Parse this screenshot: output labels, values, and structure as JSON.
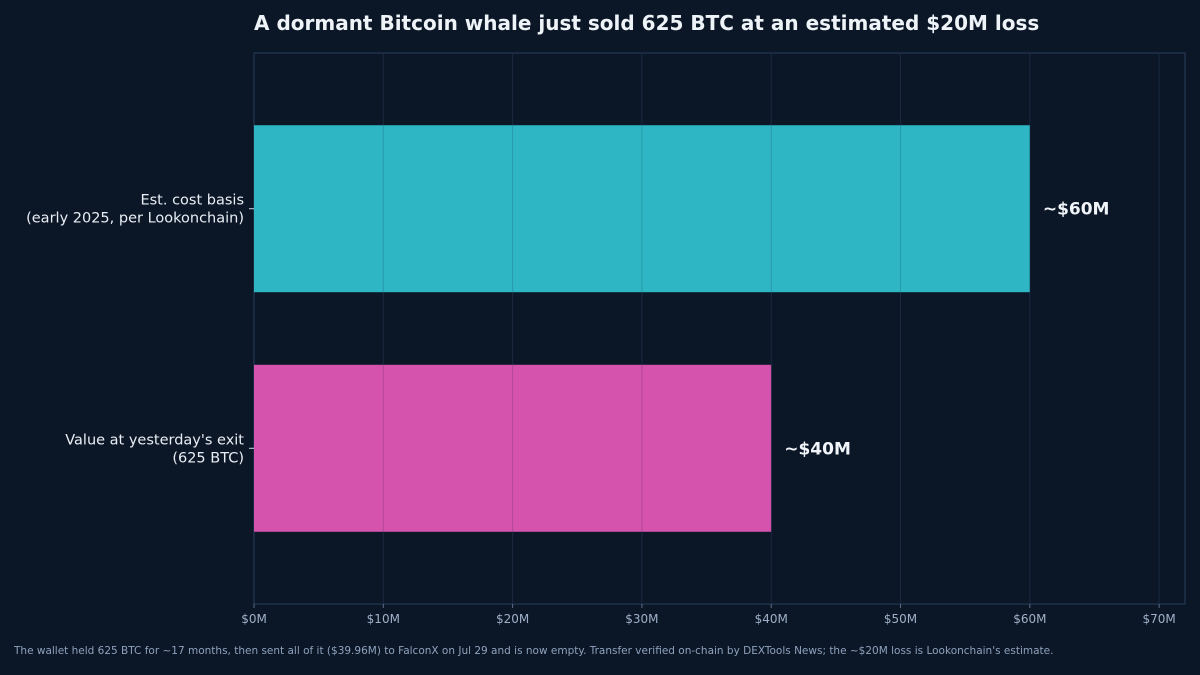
{
  "chart_data": {
    "type": "bar",
    "orientation": "horizontal",
    "title": "A dormant Bitcoin whale just sold 625 BTC at an estimated $20M loss",
    "categories": [
      [
        "Est. cost basis",
        "(early 2025, per Lookonchain)"
      ],
      [
        "Value at yesterday's exit",
        "(625 BTC)"
      ]
    ],
    "values": [
      60,
      40
    ],
    "data_labels": [
      "~$60M",
      "~$40M"
    ],
    "colors": [
      "#2fb6c5",
      "#d653ad"
    ],
    "xlim": [
      0,
      72
    ],
    "x_ticks": [
      0,
      10,
      20,
      30,
      40,
      50,
      60,
      70
    ],
    "x_tick_labels": [
      "$0M",
      "$10M",
      "$20M",
      "$30M",
      "$40M",
      "$50M",
      "$60M",
      "$70M"
    ],
    "xlabel": "",
    "ylabel": "",
    "grid": "vertical",
    "footnote": "The wallet held 625 BTC for ~17 months, then sent all of it ($39.96M) to FalconX on Jul 29 and is now empty. Transfer verified on-chain by DEXTools News; the ~$20M loss is Lookonchain's estimate."
  }
}
